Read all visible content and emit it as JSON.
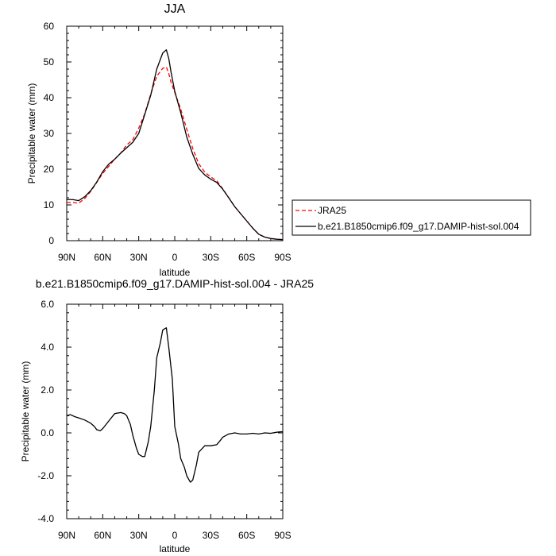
{
  "chart_data": [
    {
      "type": "line",
      "title": "JJA",
      "xlabel": "latitude",
      "ylabel": "Precipitable water (mm)",
      "x_tick_labels": [
        "90N",
        "60N",
        "30N",
        "0",
        "30S",
        "60S",
        "90S"
      ],
      "x_tick_values": [
        90,
        60,
        30,
        0,
        -30,
        -60,
        -90
      ],
      "xlim": [
        90,
        -90
      ],
      "ylim": [
        0,
        60
      ],
      "y_tick_values": [
        0,
        10,
        20,
        30,
        40,
        50,
        60
      ],
      "y_tick_labels": [
        "0",
        "10",
        "20",
        "30",
        "40",
        "50",
        "60"
      ],
      "legend_position": "right",
      "series": [
        {
          "name": "JRA25",
          "color": "#ff0000",
          "dash": "dashed",
          "x": [
            90,
            85,
            80,
            75,
            70,
            65,
            60,
            55,
            50,
            45,
            40,
            35,
            30,
            25,
            20,
            15,
            10,
            7,
            5,
            3,
            0,
            -5,
            -10,
            -15,
            -20,
            -25,
            -30,
            -35,
            -40,
            -45,
            -50,
            -55,
            -60,
            -65,
            -70,
            -75,
            -80,
            -85,
            -90
          ],
          "y": [
            10.7,
            10.7,
            10.5,
            11.8,
            13.8,
            16.3,
            18.8,
            20.8,
            22.8,
            24.5,
            26.8,
            28.2,
            31.5,
            35.5,
            41.0,
            46.0,
            48.2,
            48.6,
            46.8,
            44.2,
            41.5,
            36.8,
            31.2,
            25.8,
            21.5,
            19.2,
            17.8,
            16.8,
            14.5,
            12.0,
            9.5,
            7.5,
            5.5,
            3.5,
            1.8,
            1.0,
            0.6,
            0.4,
            0.3
          ]
        },
        {
          "name": "b.e21.B1850cmip6.f09_g17.DAMIP-hist-sol.004",
          "color": "#000000",
          "dash": "solid",
          "x": [
            90,
            85,
            80,
            75,
            70,
            65,
            60,
            55,
            50,
            45,
            40,
            35,
            30,
            25,
            20,
            15,
            10,
            7,
            5,
            3,
            0,
            -5,
            -10,
            -15,
            -20,
            -25,
            -30,
            -35,
            -40,
            -45,
            -50,
            -55,
            -60,
            -65,
            -70,
            -75,
            -80,
            -85,
            -90
          ],
          "y": [
            11.5,
            11.5,
            11.2,
            12.3,
            14.0,
            16.4,
            19.3,
            21.4,
            22.8,
            24.5,
            26.0,
            27.5,
            30.0,
            35.3,
            40.7,
            48.0,
            52.5,
            53.4,
            51.0,
            47.0,
            41.8,
            35.8,
            29.0,
            24.2,
            20.2,
            18.4,
            17.2,
            16.3,
            14.4,
            12.0,
            9.5,
            7.5,
            5.5,
            3.5,
            1.8,
            1.0,
            0.6,
            0.4,
            0.3
          ]
        }
      ]
    },
    {
      "type": "line",
      "title": "b.e21.B1850cmip6.f09_g17.DAMIP-hist-sol.004 - JRA25",
      "xlabel": "latitude",
      "ylabel": "Precipitable water (mm)",
      "x_tick_labels": [
        "90N",
        "60N",
        "30N",
        "0",
        "30S",
        "60S",
        "90S"
      ],
      "x_tick_values": [
        90,
        60,
        30,
        0,
        -30,
        -60,
        -90
      ],
      "xlim": [
        90,
        -90
      ],
      "ylim": [
        -4,
        6
      ],
      "y_tick_values": [
        -4,
        -2,
        0,
        2,
        4,
        6
      ],
      "y_tick_labels": [
        "-4.0",
        "-2.0",
        "0.0",
        "2.0",
        "4.0",
        "6.0"
      ],
      "series": [
        {
          "color": "#000000",
          "dash": "solid",
          "x": [
            90,
            87,
            83,
            80,
            75,
            70,
            67,
            65,
            62,
            60,
            55,
            50,
            45,
            42,
            40,
            37,
            35,
            32,
            30,
            27,
            25,
            22,
            20,
            17,
            15,
            12,
            10,
            7,
            5,
            2,
            0,
            -3,
            -5,
            -8,
            -10,
            -13,
            -15,
            -18,
            -20,
            -25,
            -30,
            -35,
            -38,
            -40,
            -45,
            -50,
            -55,
            -60,
            -65,
            -70,
            -75,
            -80,
            -85,
            -88,
            -90
          ],
          "y": [
            0.8,
            0.85,
            0.75,
            0.7,
            0.6,
            0.45,
            0.3,
            0.15,
            0.1,
            0.2,
            0.55,
            0.9,
            0.95,
            0.9,
            0.8,
            0.4,
            -0.1,
            -0.7,
            -1.0,
            -1.1,
            -1.1,
            -0.4,
            0.3,
            2.0,
            3.5,
            4.2,
            4.8,
            4.9,
            4.0,
            2.5,
            0.3,
            -0.5,
            -1.2,
            -1.6,
            -2.0,
            -2.3,
            -2.2,
            -1.5,
            -0.9,
            -0.6,
            -0.6,
            -0.55,
            -0.35,
            -0.2,
            -0.05,
            0.0,
            -0.05,
            -0.05,
            -0.02,
            -0.05,
            0.0,
            -0.02,
            0.03,
            0.05,
            0.05
          ]
        }
      ]
    }
  ]
}
